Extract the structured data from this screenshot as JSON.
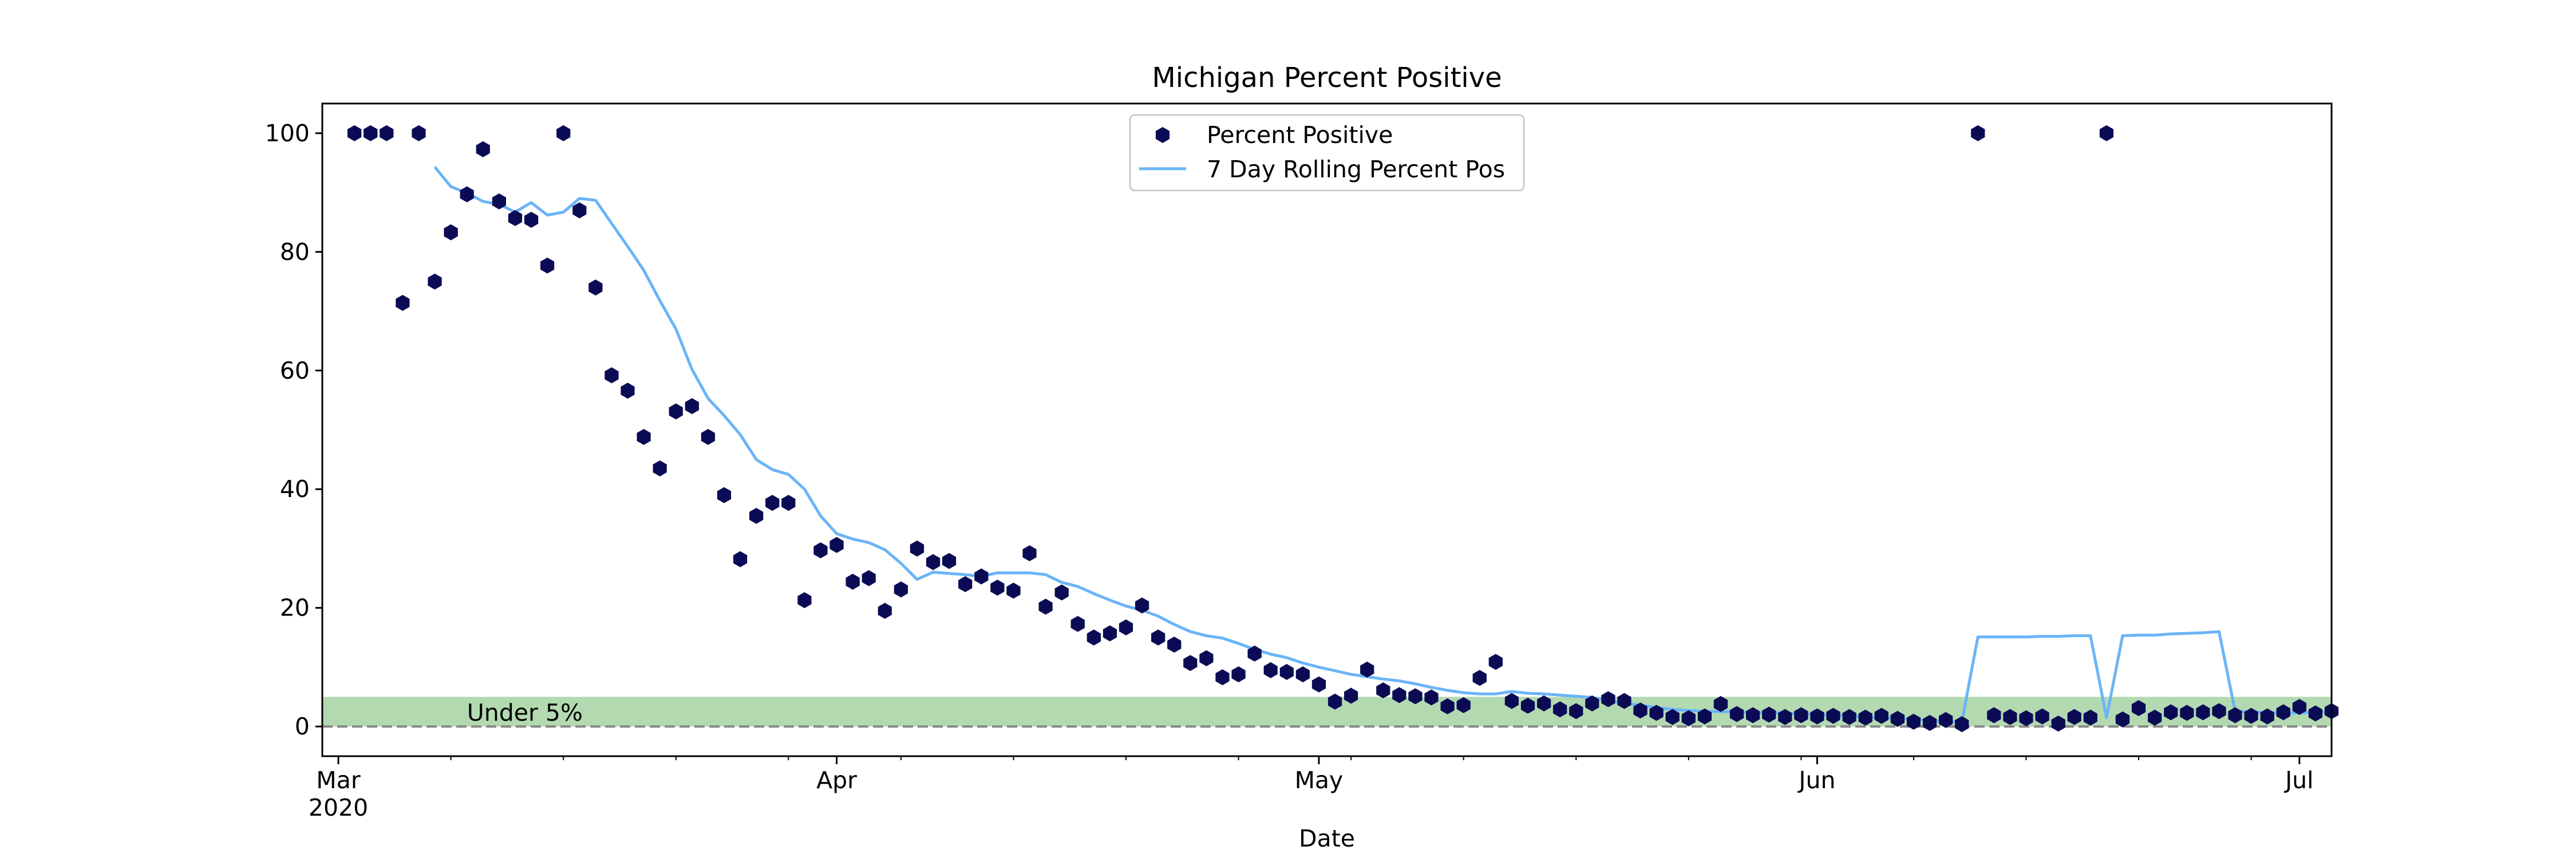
{
  "chart_data": {
    "type": "scatter",
    "title": "Michigan Percent Positive",
    "xlabel": "Date",
    "ylabel": "",
    "xlim": [
      "2020-02-29",
      "2020-07-03"
    ],
    "ylim": [
      -5,
      105
    ],
    "yticks": [
      0,
      20,
      40,
      60,
      80,
      100
    ],
    "xticks": [
      {
        "date": "2020-03-01",
        "label": "Mar",
        "sublabel": "2020"
      },
      {
        "date": "2020-04-01",
        "label": "Apr",
        "sublabel": ""
      },
      {
        "date": "2020-05-01",
        "label": "May",
        "sublabel": ""
      },
      {
        "date": "2020-06-01",
        "label": "Jun",
        "sublabel": ""
      },
      {
        "date": "2020-07-01",
        "label": "Jul",
        "sublabel": ""
      }
    ],
    "grid": false,
    "legend_position": "top-center",
    "band": {
      "from": 0,
      "to": 5,
      "label": "Under 5%",
      "color": "#b3d9b1"
    },
    "reference_line": {
      "y": 0,
      "style": "dashed",
      "color": "#888888"
    },
    "colors": {
      "points": "#0b0b55",
      "line": "#6ab4f7"
    },
    "series": [
      {
        "name": "Percent Positive",
        "kind": "points",
        "points": [
          [
            "2020-03-02",
            100
          ],
          [
            "2020-03-03",
            100
          ],
          [
            "2020-03-04",
            100
          ],
          [
            "2020-03-05",
            71.4
          ],
          [
            "2020-03-06",
            100
          ],
          [
            "2020-03-07",
            75
          ],
          [
            "2020-03-08",
            83.3
          ],
          [
            "2020-03-09",
            89.7
          ],
          [
            "2020-03-10",
            97.3
          ],
          [
            "2020-03-11",
            88.5
          ],
          [
            "2020-03-12",
            85.7
          ],
          [
            "2020-03-13",
            85.4
          ],
          [
            "2020-03-14",
            77.7
          ],
          [
            "2020-03-15",
            100
          ],
          [
            "2020-03-16",
            87
          ],
          [
            "2020-03-17",
            74
          ],
          [
            "2020-03-18",
            59.2
          ],
          [
            "2020-03-19",
            56.6
          ],
          [
            "2020-03-20",
            48.8
          ],
          [
            "2020-03-21",
            43.5
          ],
          [
            "2020-03-22",
            53.1
          ],
          [
            "2020-03-23",
            54
          ],
          [
            "2020-03-24",
            48.8
          ],
          [
            "2020-03-25",
            39
          ],
          [
            "2020-03-26",
            28.2
          ],
          [
            "2020-03-27",
            35.5
          ],
          [
            "2020-03-28",
            37.7
          ],
          [
            "2020-03-29",
            37.7
          ],
          [
            "2020-03-30",
            21.3
          ],
          [
            "2020-03-31",
            29.7
          ],
          [
            "2020-04-01",
            30.6
          ],
          [
            "2020-04-02",
            24.4
          ],
          [
            "2020-04-03",
            25
          ],
          [
            "2020-04-04",
            19.5
          ],
          [
            "2020-04-05",
            23.1
          ],
          [
            "2020-04-06",
            30
          ],
          [
            "2020-04-07",
            27.7
          ],
          [
            "2020-04-08",
            27.9
          ],
          [
            "2020-04-09",
            24
          ],
          [
            "2020-04-10",
            25.3
          ],
          [
            "2020-04-11",
            23.4
          ],
          [
            "2020-04-12",
            22.9
          ],
          [
            "2020-04-13",
            29.2
          ],
          [
            "2020-04-14",
            20.2
          ],
          [
            "2020-04-15",
            22.6
          ],
          [
            "2020-04-16",
            17.3
          ],
          [
            "2020-04-17",
            15
          ],
          [
            "2020-04-18",
            15.7
          ],
          [
            "2020-04-19",
            16.7
          ],
          [
            "2020-04-20",
            20.4
          ],
          [
            "2020-04-21",
            15
          ],
          [
            "2020-04-22",
            13.8
          ],
          [
            "2020-04-23",
            10.7
          ],
          [
            "2020-04-24",
            11.5
          ],
          [
            "2020-04-25",
            8.3
          ],
          [
            "2020-04-26",
            8.8
          ],
          [
            "2020-04-27",
            12.3
          ],
          [
            "2020-04-28",
            9.5
          ],
          [
            "2020-04-29",
            9.2
          ],
          [
            "2020-04-30",
            8.8
          ],
          [
            "2020-05-01",
            7.1
          ],
          [
            "2020-05-02",
            4.2
          ],
          [
            "2020-05-03",
            5.2
          ],
          [
            "2020-05-04",
            9.6
          ],
          [
            "2020-05-05",
            6.1
          ],
          [
            "2020-05-06",
            5.3
          ],
          [
            "2020-05-07",
            5.1
          ],
          [
            "2020-05-08",
            4.9
          ],
          [
            "2020-05-09",
            3.4
          ],
          [
            "2020-05-10",
            3.6
          ],
          [
            "2020-05-11",
            8.2
          ],
          [
            "2020-05-12",
            10.9
          ],
          [
            "2020-05-13",
            4.3
          ],
          [
            "2020-05-14",
            3.5
          ],
          [
            "2020-05-15",
            3.9
          ],
          [
            "2020-05-16",
            2.9
          ],
          [
            "2020-05-17",
            2.6
          ],
          [
            "2020-05-18",
            3.9
          ],
          [
            "2020-05-19",
            4.6
          ],
          [
            "2020-05-20",
            4.3
          ],
          [
            "2020-05-21",
            2.7
          ],
          [
            "2020-05-22",
            2.3
          ],
          [
            "2020-05-23",
            1.6
          ],
          [
            "2020-05-24",
            1.4
          ],
          [
            "2020-05-25",
            1.7
          ],
          [
            "2020-05-26",
            3.8
          ],
          [
            "2020-05-27",
            2.1
          ],
          [
            "2020-05-28",
            1.9
          ],
          [
            "2020-05-29",
            2
          ],
          [
            "2020-05-30",
            1.6
          ],
          [
            "2020-05-31",
            1.9
          ],
          [
            "2020-06-01",
            1.7
          ],
          [
            "2020-06-02",
            1.8
          ],
          [
            "2020-06-03",
            1.6
          ],
          [
            "2020-06-04",
            1.5
          ],
          [
            "2020-06-05",
            1.8
          ],
          [
            "2020-06-06",
            1.3
          ],
          [
            "2020-06-07",
            0.8
          ],
          [
            "2020-06-08",
            0.6
          ],
          [
            "2020-06-09",
            1.1
          ],
          [
            "2020-06-10",
            0.4
          ],
          [
            "2020-06-11",
            100
          ],
          [
            "2020-06-12",
            1.9
          ],
          [
            "2020-06-13",
            1.6
          ],
          [
            "2020-06-14",
            1.4
          ],
          [
            "2020-06-15",
            1.7
          ],
          [
            "2020-06-16",
            0.5
          ],
          [
            "2020-06-17",
            1.6
          ],
          [
            "2020-06-18",
            1.5
          ],
          [
            "2020-06-19",
            100
          ],
          [
            "2020-06-20",
            1.2
          ],
          [
            "2020-06-21",
            3.1
          ],
          [
            "2020-06-22",
            1.5
          ],
          [
            "2020-06-23",
            2.4
          ],
          [
            "2020-06-24",
            2.3
          ],
          [
            "2020-06-25",
            2.4
          ],
          [
            "2020-06-26",
            2.6
          ],
          [
            "2020-06-27",
            1.9
          ],
          [
            "2020-06-28",
            1.8
          ],
          [
            "2020-06-29",
            1.7
          ],
          [
            "2020-06-30",
            2.4
          ],
          [
            "2020-07-01",
            3.3
          ],
          [
            "2020-07-02",
            2.2
          ],
          [
            "2020-07-03",
            2.6
          ]
        ]
      },
      {
        "name": "7 Day Rolling Percent Pos",
        "kind": "line",
        "points": [
          [
            "2020-03-07",
            94.3
          ],
          [
            "2020-03-08",
            91
          ],
          [
            "2020-03-09",
            89.9
          ],
          [
            "2020-03-10",
            88.5
          ],
          [
            "2020-03-11",
            88
          ],
          [
            "2020-03-12",
            86.7
          ],
          [
            "2020-03-13",
            88.3
          ],
          [
            "2020-03-14",
            86.2
          ],
          [
            "2020-03-15",
            86.7
          ],
          [
            "2020-03-16",
            89
          ],
          [
            "2020-03-17",
            88.7
          ],
          [
            "2020-03-18",
            84.8
          ],
          [
            "2020-03-19",
            80.9
          ],
          [
            "2020-03-20",
            76.9
          ],
          [
            "2020-03-21",
            71.8
          ],
          [
            "2020-03-22",
            67
          ],
          [
            "2020-03-23",
            60.2
          ],
          [
            "2020-03-24",
            55.3
          ],
          [
            "2020-03-25",
            52.4
          ],
          [
            "2020-03-26",
            49.2
          ],
          [
            "2020-03-27",
            45
          ],
          [
            "2020-03-28",
            43.3
          ],
          [
            "2020-03-29",
            42.5
          ],
          [
            "2020-03-30",
            40
          ],
          [
            "2020-03-31",
            35.5
          ],
          [
            "2020-04-01",
            32.5
          ],
          [
            "2020-04-02",
            31.6
          ],
          [
            "2020-04-03",
            31
          ],
          [
            "2020-04-04",
            29.8
          ],
          [
            "2020-04-05",
            27.5
          ],
          [
            "2020-04-06",
            24.8
          ],
          [
            "2020-04-07",
            26
          ],
          [
            "2020-04-08",
            25.8
          ],
          [
            "2020-04-09",
            25.6
          ],
          [
            "2020-04-10",
            25.3
          ],
          [
            "2020-04-11",
            25.9
          ],
          [
            "2020-04-12",
            25.9
          ],
          [
            "2020-04-13",
            25.9
          ],
          [
            "2020-04-14",
            25.6
          ],
          [
            "2020-04-15",
            24.3
          ],
          [
            "2020-04-16",
            23.6
          ],
          [
            "2020-04-17",
            22.4
          ],
          [
            "2020-04-18",
            21.3
          ],
          [
            "2020-04-19",
            20.3
          ],
          [
            "2020-04-20",
            19.6
          ],
          [
            "2020-04-21",
            18.6
          ],
          [
            "2020-04-22",
            17.2
          ],
          [
            "2020-04-23",
            16
          ],
          [
            "2020-04-24",
            15.3
          ],
          [
            "2020-04-25",
            14.9
          ],
          [
            "2020-04-26",
            14
          ],
          [
            "2020-04-27",
            13
          ],
          [
            "2020-04-28",
            12.2
          ],
          [
            "2020-04-29",
            11.6
          ],
          [
            "2020-04-30",
            10.7
          ],
          [
            "2020-05-01",
            10
          ],
          [
            "2020-05-02",
            9.4
          ],
          [
            "2020-05-03",
            8.8
          ],
          [
            "2020-05-04",
            8.4
          ],
          [
            "2020-05-05",
            8
          ],
          [
            "2020-05-06",
            7.7
          ],
          [
            "2020-05-07",
            7.2
          ],
          [
            "2020-05-08",
            6.6
          ],
          [
            "2020-05-09",
            6.1
          ],
          [
            "2020-05-10",
            5.7
          ],
          [
            "2020-05-11",
            5.5
          ],
          [
            "2020-05-12",
            5.5
          ],
          [
            "2020-05-13",
            5.9
          ],
          [
            "2020-05-14",
            5.6
          ],
          [
            "2020-05-15",
            5.5
          ],
          [
            "2020-05-16",
            5.3
          ],
          [
            "2020-05-17",
            5.1
          ],
          [
            "2020-05-18",
            4.9
          ],
          [
            "2020-05-19",
            4.4
          ],
          [
            "2020-05-20",
            3.9
          ],
          [
            "2020-05-21",
            3.6
          ],
          [
            "2020-05-22",
            3.2
          ],
          [
            "2020-05-23",
            2.9
          ],
          [
            "2020-05-24",
            2.7
          ],
          [
            "2020-05-25",
            2.6
          ],
          [
            "2020-05-26",
            2.5
          ],
          [
            "2020-05-27",
            2.5
          ],
          [
            "2020-05-28",
            2.3
          ],
          [
            "2020-05-29",
            2.3
          ],
          [
            "2020-05-30",
            2.3
          ],
          [
            "2020-05-31",
            2.1
          ],
          [
            "2020-06-01",
            2
          ],
          [
            "2020-06-02",
            1.9
          ],
          [
            "2020-06-03",
            1.8
          ],
          [
            "2020-06-04",
            1.6
          ],
          [
            "2020-06-05",
            1.5
          ],
          [
            "2020-06-06",
            1.4
          ],
          [
            "2020-06-07",
            1.2
          ],
          [
            "2020-06-08",
            1
          ],
          [
            "2020-06-09",
            0.9
          ],
          [
            "2020-06-10",
            0.8
          ],
          [
            "2020-06-11",
            15.1
          ],
          [
            "2020-06-12",
            15.1
          ],
          [
            "2020-06-13",
            15.1
          ],
          [
            "2020-06-14",
            15.1
          ],
          [
            "2020-06-15",
            15.2
          ],
          [
            "2020-06-16",
            15.2
          ],
          [
            "2020-06-17",
            15.3
          ],
          [
            "2020-06-18",
            15.3
          ],
          [
            "2020-06-19",
            1.5
          ],
          [
            "2020-06-20",
            15.3
          ],
          [
            "2020-06-21",
            15.4
          ],
          [
            "2020-06-22",
            15.4
          ],
          [
            "2020-06-23",
            15.6
          ],
          [
            "2020-06-24",
            15.7
          ],
          [
            "2020-06-25",
            15.8
          ],
          [
            "2020-06-26",
            16
          ],
          [
            "2020-06-27",
            2.6
          ],
          [
            "2020-06-28",
            2.4
          ],
          [
            "2020-06-29",
            2.4
          ],
          [
            "2020-06-30",
            2.3
          ],
          [
            "2020-07-01",
            2.3
          ],
          [
            "2020-07-02",
            2.4
          ],
          [
            "2020-07-03",
            2.5
          ]
        ]
      }
    ]
  }
}
